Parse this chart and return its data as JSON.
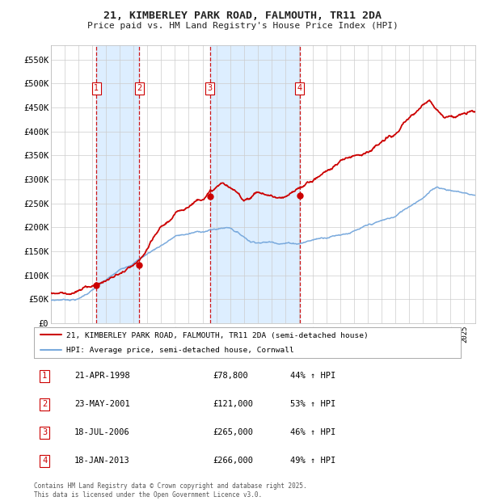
{
  "title": "21, KIMBERLEY PARK ROAD, FALMOUTH, TR11 2DA",
  "subtitle": "Price paid vs. HM Land Registry's House Price Index (HPI)",
  "footer": "Contains HM Land Registry data © Crown copyright and database right 2025.\nThis data is licensed under the Open Government Licence v3.0.",
  "legend_line1": "21, KIMBERLEY PARK ROAD, FALMOUTH, TR11 2DA (semi-detached house)",
  "legend_line2": "HPI: Average price, semi-detached house, Cornwall",
  "transactions": [
    {
      "num": 1,
      "date": "21-APR-1998",
      "year": 1998.3,
      "price": 78800,
      "pct": "44%",
      "dir": "↑"
    },
    {
      "num": 2,
      "date": "23-MAY-2001",
      "year": 2001.4,
      "price": 121000,
      "pct": "53%",
      "dir": "↑"
    },
    {
      "num": 3,
      "date": "18-JUL-2006",
      "year": 2006.55,
      "price": 265000,
      "pct": "46%",
      "dir": "↑"
    },
    {
      "num": 4,
      "date": "18-JAN-2013",
      "year": 2013.05,
      "price": 266000,
      "pct": "49%",
      "dir": "↑"
    }
  ],
  "ylim": [
    0,
    580000
  ],
  "yticks": [
    0,
    50000,
    100000,
    150000,
    200000,
    250000,
    300000,
    350000,
    400000,
    450000,
    500000,
    550000
  ],
  "xlim_start": 1995,
  "xlim_end": 2025.8,
  "background_color": "#ffffff",
  "plot_bg_color": "#ffffff",
  "grid_color": "#cccccc",
  "hpi_line_color": "#7aaadd",
  "price_line_color": "#cc0000",
  "shade_color": "#ddeeff",
  "vline_color": "#cc0000",
  "marker_color": "#cc0000"
}
